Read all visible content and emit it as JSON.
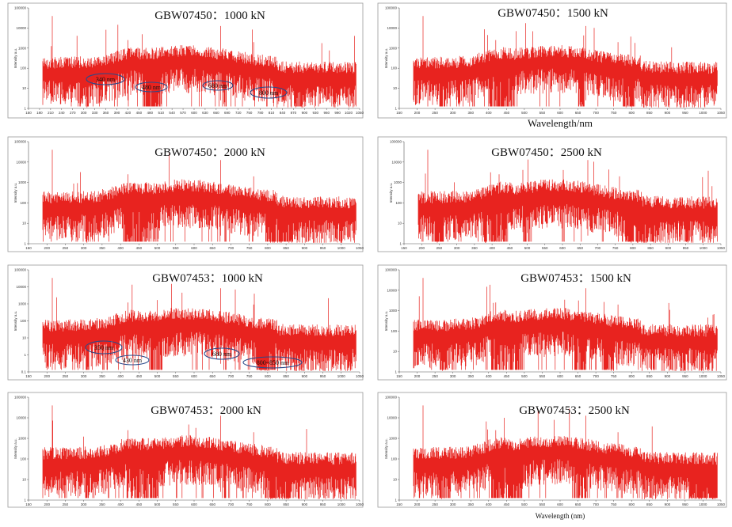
{
  "chart_data": [
    {
      "type": "line",
      "title": "GBW07450：1000 kN",
      "ylabel": "Intensity a.u.",
      "xlabel": "",
      "x_ticks": [
        "150",
        "180",
        "210",
        "240",
        "270",
        "300",
        "330",
        "360",
        "390",
        "420",
        "450",
        "480",
        "510",
        "540",
        "570",
        "600",
        "630",
        "660",
        "690",
        "720",
        "750",
        "780",
        "810",
        "840",
        "870",
        "900",
        "930",
        "960",
        "990",
        "1020",
        "1050"
      ],
      "y_ticks": [
        "1",
        "10",
        "100",
        "1000",
        "10000",
        "100000"
      ],
      "series_color": "#e8231f",
      "annotations": [
        "340 nm",
        "480 nm",
        "680 nm",
        "800 nm"
      ]
    },
    {
      "type": "line",
      "title": "GBW07450：1500 kN",
      "ylabel": "Intensity a.u.",
      "xlabel": "Wavelength/nm",
      "x_ticks": [
        "150",
        "200",
        "250",
        "300",
        "350",
        "400",
        "450",
        "500",
        "550",
        "600",
        "650",
        "700",
        "750",
        "800",
        "850",
        "900",
        "950",
        "1000",
        "1050"
      ],
      "y_ticks": [
        "1",
        "10",
        "100",
        "1000",
        "10000",
        "100000"
      ],
      "series_color": "#e8231f",
      "annotations": []
    },
    {
      "type": "line",
      "title": "GBW07450：2000 kN",
      "ylabel": "Intensity a.u.",
      "xlabel": "",
      "x_ticks": [
        "150",
        "200",
        "250",
        "300",
        "350",
        "400",
        "450",
        "500",
        "550",
        "600",
        "650",
        "700",
        "750",
        "800",
        "850",
        "900",
        "950",
        "1000",
        "1050"
      ],
      "y_ticks": [
        "1",
        "10",
        "100",
        "1000",
        "10000",
        "100000"
      ],
      "series_color": "#e8231f",
      "annotations": []
    },
    {
      "type": "line",
      "title": "GBW07450：2500 kN",
      "ylabel": "Intensity a.u.",
      "xlabel": "",
      "x_ticks": [
        "150",
        "200",
        "250",
        "300",
        "350",
        "400",
        "450",
        "500",
        "550",
        "600",
        "650",
        "700",
        "750",
        "800",
        "850",
        "900",
        "950",
        "1000",
        "1050"
      ],
      "y_ticks": [
        "1",
        "10",
        "100",
        "1000",
        "10000",
        "100000"
      ],
      "series_color": "#e8231f",
      "annotations": []
    },
    {
      "type": "line",
      "title": "GBW07453：1000 kN",
      "ylabel": "Intensity a.u.",
      "xlabel": "",
      "x_ticks": [
        "150",
        "200",
        "250",
        "300",
        "350",
        "400",
        "450",
        "500",
        "550",
        "600",
        "650",
        "700",
        "750",
        "800",
        "850",
        "900",
        "950",
        "1000",
        "1050"
      ],
      "y_ticks": [
        "0.1",
        "1",
        "10",
        "100",
        "1000",
        "10000",
        "100000"
      ],
      "series_color": "#e8231f",
      "annotations": [
        "350 nm",
        "430 nm",
        "680 nm",
        "800~850 nm"
      ]
    },
    {
      "type": "line",
      "title": "GBW07453：1500 kN",
      "ylabel": "Intensity a.u.",
      "xlabel": "",
      "x_ticks": [
        "150",
        "200",
        "250",
        "300",
        "350",
        "400",
        "450",
        "500",
        "550",
        "600",
        "650",
        "700",
        "750",
        "800",
        "850",
        "900",
        "950",
        "1000",
        "1050"
      ],
      "y_ticks": [
        "1",
        "10",
        "100",
        "1000",
        "10000",
        "100000"
      ],
      "series_color": "#e8231f",
      "annotations": []
    },
    {
      "type": "line",
      "title": "GBW07453：2000 kN",
      "ylabel": "Intensity a.u.",
      "xlabel": "",
      "x_ticks": [
        "150",
        "200",
        "250",
        "300",
        "350",
        "400",
        "450",
        "500",
        "550",
        "600",
        "650",
        "700",
        "750",
        "800",
        "850",
        "900",
        "950",
        "1000",
        "1050"
      ],
      "y_ticks": [
        "1",
        "10",
        "100",
        "1000",
        "10000",
        "100000"
      ],
      "series_color": "#e8231f",
      "annotations": []
    },
    {
      "type": "line",
      "title": "GBW07453：2500 kN",
      "ylabel": "Intensity a.u.",
      "xlabel": "Wavelength (nm)",
      "x_ticks": [
        "150",
        "200",
        "250",
        "300",
        "350",
        "400",
        "450",
        "500",
        "550",
        "600",
        "650",
        "700",
        "750",
        "800",
        "850",
        "900",
        "950",
        "1000",
        "1050"
      ],
      "y_ticks": [
        "1",
        "10",
        "100",
        "1000",
        "10000",
        "100000"
      ],
      "series_color": "#e8231f",
      "annotations": []
    }
  ]
}
